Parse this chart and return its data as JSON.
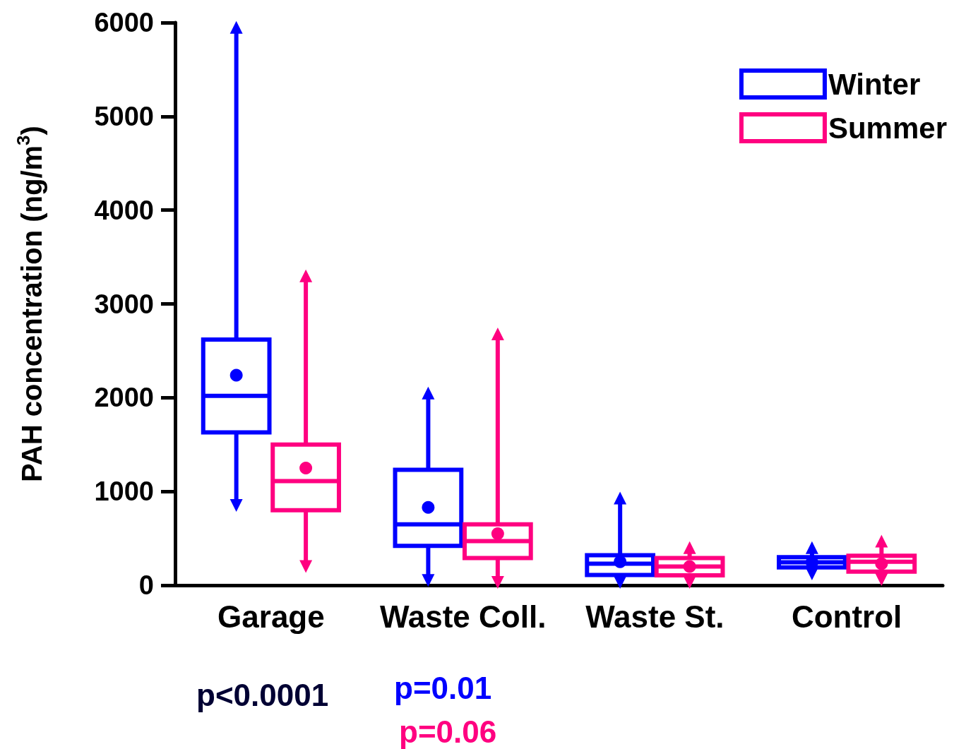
{
  "chart_data": {
    "type": "box",
    "ylabel": "PAH concentration (ng/m$^{3}$)",
    "categories": [
      "Garage",
      "Waste Coll.",
      "Waste St.",
      "Control"
    ],
    "ylim": [
      0,
      6000
    ],
    "yticks": [
      0,
      1000,
      2000,
      3000,
      4000,
      5000,
      6000
    ],
    "grid": false,
    "legend": "top right",
    "series": [
      {
        "name": "Winter",
        "color": "#0000ff",
        "boxes": [
          {
            "low": 850,
            "q1": 1630,
            "median": 2020,
            "q3": 2620,
            "high": 5950,
            "mean": 2240
          },
          {
            "low": 50,
            "q1": 420,
            "median": 650,
            "q3": 1230,
            "high": 2050,
            "mean": 830
          },
          {
            "low": 30,
            "q1": 110,
            "median": 230,
            "q3": 320,
            "high": 930,
            "mean": 250
          },
          {
            "low": 120,
            "q1": 190,
            "median": 245,
            "q3": 300,
            "high": 400,
            "mean": 245
          }
        ]
      },
      {
        "name": "Summer",
        "color": "#ff0080",
        "boxes": [
          {
            "low": 200,
            "q1": 800,
            "median": 1110,
            "q3": 1500,
            "high": 3300,
            "mean": 1250
          },
          {
            "low": 30,
            "q1": 290,
            "median": 470,
            "q3": 650,
            "high": 2680,
            "mean": 550
          },
          {
            "low": 30,
            "q1": 105,
            "median": 200,
            "q3": 290,
            "high": 400,
            "mean": 200
          },
          {
            "low": 60,
            "q1": 145,
            "median": 250,
            "q3": 315,
            "high": 470,
            "mean": 230
          }
        ]
      }
    ],
    "annotations": [
      "p<0.0001",
      "p=0.01",
      "p=0.06"
    ]
  }
}
